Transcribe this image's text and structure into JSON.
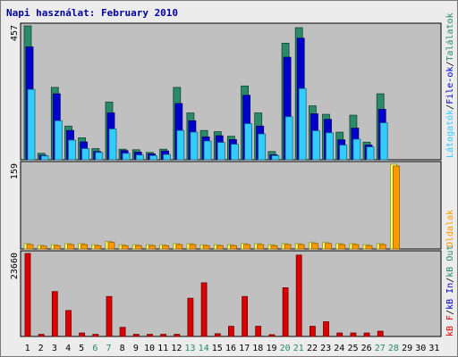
{
  "title": "Napi használat: February 2010",
  "colors": {
    "talalatok": "#2a8a6a",
    "file_ok": "#0000cc",
    "latogatok": "#33ccff",
    "oldalak": "#ff9900",
    "oldalak_alt": "#ffff66",
    "kb_in": "#0000cc",
    "kb_out": "#2a8a6a",
    "kb_f": "#dd0000",
    "weekend_label": "#2a8a6a"
  },
  "legend": {
    "top": [
      "Találatok",
      "/",
      "File-ok",
      "/",
      "Látogatók"
    ],
    "mid": [
      "Oldalak"
    ],
    "bottom": [
      "kB F",
      "/",
      "kB In",
      "/",
      "kB Out"
    ]
  },
  "chart_data": [
    {
      "type": "bar",
      "panel": "top",
      "ymax_label": "457",
      "ylim": [
        0,
        457
      ],
      "categories": [
        "1",
        "2",
        "3",
        "4",
        "5",
        "6",
        "7",
        "8",
        "9",
        "10",
        "11",
        "12",
        "13",
        "14",
        "15",
        "16",
        "17",
        "18",
        "19",
        "20",
        "21",
        "22",
        "23",
        "24",
        "25",
        "26",
        "27",
        "28",
        "29",
        "30",
        "31"
      ],
      "weekend_days": [
        "6",
        "7",
        "13",
        "14",
        "20",
        "21",
        "27",
        "28"
      ],
      "series": [
        {
          "name": "Találatok",
          "values": [
            457,
            22,
            247,
            115,
            75,
            38,
            197,
            36,
            34,
            25,
            36,
            247,
            160,
            100,
            96,
            80,
            252,
            160,
            28,
            398,
            451,
            184,
            155,
            94,
            152,
            60,
            225,
            0,
            0,
            0,
            0
          ]
        },
        {
          "name": "File-ok",
          "values": [
            385,
            15,
            225,
            100,
            61,
            28,
            160,
            31,
            26,
            20,
            30,
            192,
            133,
            78,
            82,
            69,
            220,
            115,
            17,
            350,
            415,
            157,
            138,
            68,
            108,
            50,
            172,
            0,
            0,
            0,
            0
          ]
        },
        {
          "name": "Látogatók",
          "values": [
            240,
            13,
            133,
            67,
            38,
            25,
            105,
            22,
            16,
            14,
            18,
            100,
            94,
            64,
            59,
            53,
            123,
            88,
            14,
            147,
            243,
            99,
            92,
            50,
            70,
            44,
            126,
            0,
            0,
            0,
            0
          ]
        }
      ]
    },
    {
      "type": "bar",
      "panel": "middle",
      "ymax_label": "159",
      "ylim": [
        0,
        159
      ],
      "categories": [
        "1",
        "2",
        "3",
        "4",
        "5",
        "6",
        "7",
        "8",
        "9",
        "10",
        "11",
        "12",
        "13",
        "14",
        "15",
        "16",
        "17",
        "18",
        "19",
        "20",
        "21",
        "22",
        "23",
        "24",
        "25",
        "26",
        "27",
        "28",
        "29",
        "30",
        "31"
      ],
      "series": [
        {
          "name": "Oldalak",
          "values": [
            10,
            7,
            8,
            10,
            10,
            8,
            14,
            8,
            8,
            8,
            8,
            10,
            10,
            8,
            8,
            8,
            10,
            10,
            8,
            10,
            10,
            12,
            12,
            10,
            10,
            8,
            10,
            159,
            0,
            0,
            0
          ]
        }
      ]
    },
    {
      "type": "bar",
      "panel": "bottom",
      "ymax_label": "23660",
      "ylim": [
        0,
        23660
      ],
      "categories": [
        "1",
        "2",
        "3",
        "4",
        "5",
        "6",
        "7",
        "8",
        "9",
        "10",
        "11",
        "12",
        "13",
        "14",
        "15",
        "16",
        "17",
        "18",
        "19",
        "20",
        "21",
        "22",
        "23",
        "24",
        "25",
        "26",
        "27",
        "28",
        "29",
        "30",
        "31"
      ],
      "series": [
        {
          "name": "kB F",
          "values": [
            23660,
            600,
            12800,
            7400,
            1000,
            600,
            11400,
            2600,
            600,
            600,
            600,
            600,
            10900,
            15300,
            800,
            2900,
            11400,
            2900,
            500,
            13900,
            23200,
            2900,
            4200,
            1000,
            1000,
            1000,
            1500,
            0,
            0,
            0,
            0
          ]
        }
      ]
    }
  ]
}
